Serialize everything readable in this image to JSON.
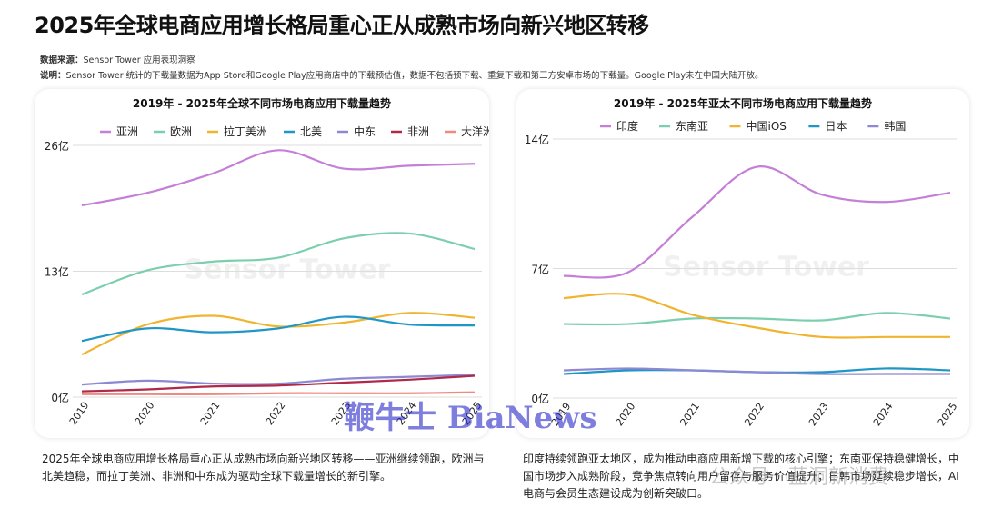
{
  "title": "2025年全球电商应用增长格局重心正从成熟市场向新兴地区转移",
  "source_label": "数据来源：",
  "source": "Sensor Tower 应用表现洞察",
  "note_label": "说明：",
  "note": "Sensor Tower 统计的下载量数据为App Store和Google Play应用商店中的下载预估值，数据不包括预下载、重复下载和第三方安卓市场的下载量。Google Play未在中国大陆开放。",
  "chart_watermark": "Sensor Tower",
  "watermarks": {
    "bianews": "鞭牛士 BiaNews",
    "wechat": "公众号 · 蓝洞新消费"
  },
  "descriptions": {
    "left": "2025年全球电商应用增长格局重心正从成熟市场向新兴地区转移——亚洲继续领跑，欧洲与北美趋稳，而拉丁美洲、非洲和中东成为驱动全球下载量增长的新引擎。",
    "right": "印度持续领跑亚太地区，成为推动电商应用新增下载的核心引擎；东南亚保持稳健增长，中国市场步入成熟阶段，竞争焦点转向用户留存与服务价值提升；日韩市场延续稳步增长，AI电商与会员生态建设成为创新突破口。"
  },
  "chart_data": [
    {
      "type": "line",
      "title": "2019年 - 2025年全球不同市场电商应用下载量趋势",
      "legend": "top",
      "grid": true,
      "categories": [
        "2019",
        "2020",
        "2021",
        "2022",
        "2023",
        "2024",
        "2025"
      ],
      "ylim": [
        0,
        26
      ],
      "yticks": [
        {
          "v": 0,
          "label": "0亿"
        },
        {
          "v": 13,
          "label": "13亿"
        },
        {
          "v": 26,
          "label": "26亿"
        }
      ],
      "series": [
        {
          "name": "亚洲",
          "color": "#c47fd6",
          "values": [
            19.8,
            21.1,
            23.1,
            25.5,
            23.6,
            23.9,
            24.1
          ]
        },
        {
          "name": "欧洲",
          "color": "#7ccfae",
          "values": [
            10.6,
            13.1,
            14.0,
            14.4,
            16.4,
            16.9,
            15.3
          ]
        },
        {
          "name": "拉丁美洲",
          "color": "#f0b530",
          "values": [
            4.4,
            7.5,
            8.4,
            7.3,
            7.7,
            8.7,
            8.2
          ]
        },
        {
          "name": "北美",
          "color": "#1f96c6",
          "values": [
            5.8,
            7.1,
            6.7,
            7.1,
            8.3,
            7.5,
            7.4
          ]
        },
        {
          "name": "中东",
          "color": "#8c88d2",
          "values": [
            1.3,
            1.7,
            1.4,
            1.4,
            1.9,
            2.1,
            2.3
          ]
        },
        {
          "name": "非洲",
          "color": "#b0284a",
          "values": [
            0.6,
            0.8,
            1.1,
            1.2,
            1.5,
            1.8,
            2.2
          ]
        },
        {
          "name": "大洋洲",
          "color": "#ef8a80",
          "values": [
            0.3,
            0.3,
            0.3,
            0.4,
            0.4,
            0.4,
            0.5
          ]
        }
      ]
    },
    {
      "type": "line",
      "title": "2019年 - 2025年亚太不同市场电商应用下载量趋势",
      "legend": "top",
      "grid": true,
      "categories": [
        "2019",
        "2020",
        "2021",
        "2022",
        "2023",
        "2024",
        "2025"
      ],
      "ylim": [
        0,
        14
      ],
      "yticks": [
        {
          "v": 0,
          "label": "0亿"
        },
        {
          "v": 7,
          "label": "7亿"
        },
        {
          "v": 14,
          "label": "14亿"
        }
      ],
      "series": [
        {
          "name": "印度",
          "color": "#c47fd6",
          "values": [
            6.6,
            6.8,
            9.8,
            12.5,
            11.0,
            10.6,
            11.1
          ]
        },
        {
          "name": "东南亚",
          "color": "#7ccfae",
          "values": [
            4.0,
            4.0,
            4.3,
            4.3,
            4.2,
            4.6,
            4.3
          ]
        },
        {
          "name": "中国iOS",
          "color": "#f0b530",
          "values": [
            5.4,
            5.6,
            4.5,
            3.8,
            3.3,
            3.3,
            3.3
          ]
        },
        {
          "name": "日本",
          "color": "#1f96c6",
          "values": [
            1.3,
            1.5,
            1.5,
            1.4,
            1.4,
            1.6,
            1.5
          ]
        },
        {
          "name": "韩国",
          "color": "#8c88d2",
          "values": [
            1.5,
            1.6,
            1.5,
            1.4,
            1.3,
            1.3,
            1.3
          ]
        }
      ]
    }
  ]
}
